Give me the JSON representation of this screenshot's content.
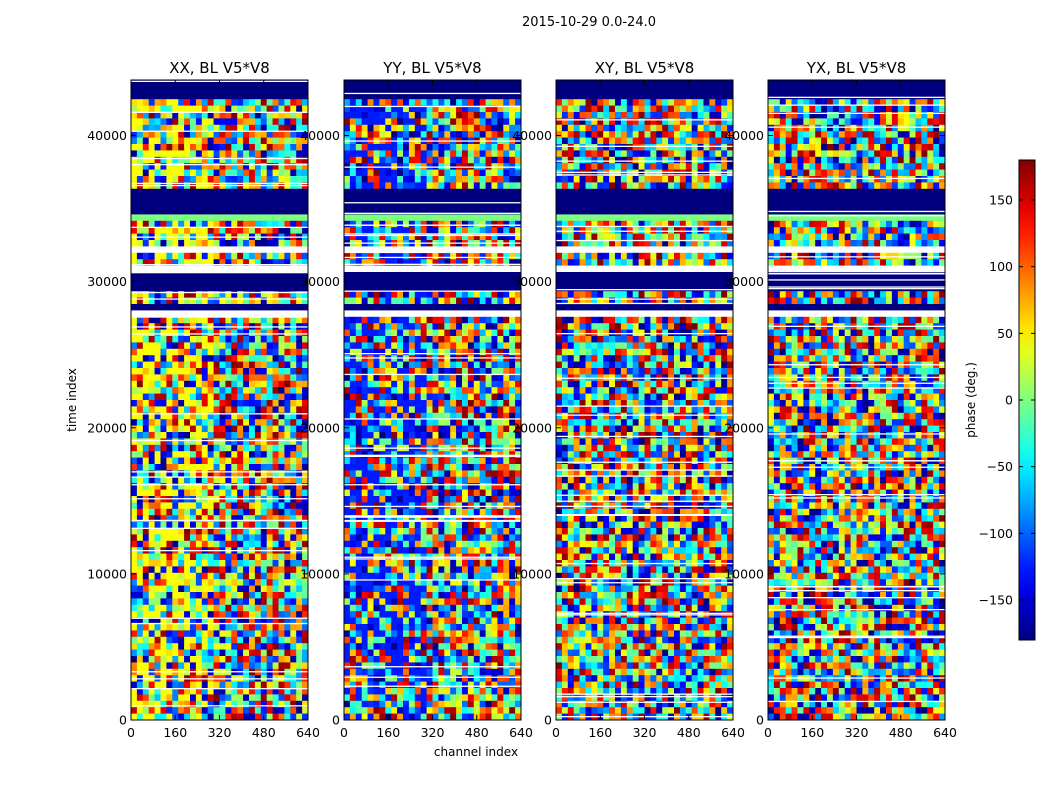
{
  "chart_data": {
    "type": "heatmap",
    "title": "2015-10-29 0.0-24.0",
    "xlabel": "channel index",
    "ylabel": "time index",
    "xlim": [
      0,
      640
    ],
    "ylim": [
      0,
      43800
    ],
    "xticks": [
      0,
      160,
      320,
      480,
      640
    ],
    "yticks": [
      0,
      10000,
      20000,
      30000,
      40000
    ],
    "panels": [
      {
        "title": "XX, BL V5*V8",
        "polarization": "XX",
        "baseline": "V5*V8"
      },
      {
        "title": "YY, BL V5*V8",
        "polarization": "YY",
        "baseline": "V5*V8"
      },
      {
        "title": "XY, BL V5*V8",
        "polarization": "XY",
        "baseline": "V5*V8"
      },
      {
        "title": "YX, BL V5*V8",
        "polarization": "YX",
        "baseline": "V5*V8"
      }
    ],
    "colorbar": {
      "label": "phase (deg.)",
      "range": [
        -180,
        180
      ],
      "ticks": [
        150,
        100,
        50,
        0,
        -50,
        -100,
        -150
      ],
      "tick_labels": [
        "150",
        "100",
        "50",
        "0",
        "−50",
        "−100",
        "−150"
      ],
      "colormap": "jet"
    },
    "blank_bands": [
      [
        32000,
        32300
      ],
      [
        30800,
        31100
      ],
      [
        28300,
        28600
      ],
      [
        27600,
        27900
      ],
      [
        3500,
        3700
      ],
      [
        9000,
        9200
      ],
      [
        12500,
        12700
      ]
    ],
    "masked_bands_dark": [
      [
        34800,
        36500
      ],
      [
        29300,
        30700
      ],
      [
        27900,
        28300
      ],
      [
        42300,
        43800
      ]
    ],
    "masked_bands_green": [
      [
        34000,
        34800
      ]
    ]
  },
  "colors": {
    "masked": "#00007f",
    "flat": "#7fff7f"
  }
}
